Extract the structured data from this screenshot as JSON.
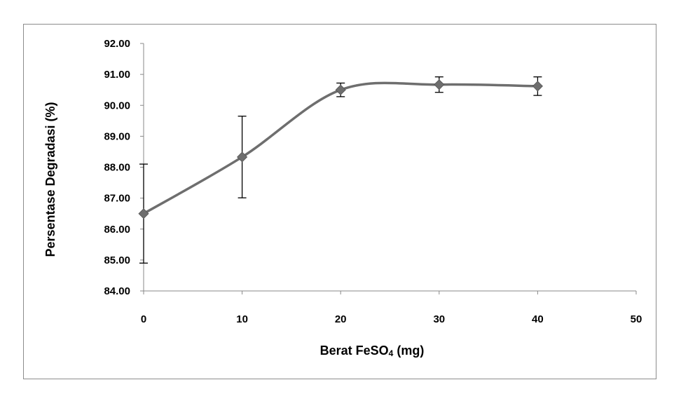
{
  "chart_data": {
    "type": "line",
    "title": "",
    "xlabel": "Berat FeSO",
    "xlabel_subscript": "4",
    "xlabel_suffix": " (mg)",
    "ylabel": "Persentase Degradasi (%)",
    "xlim": [
      0,
      50
    ],
    "ylim": [
      84,
      92
    ],
    "x_ticks": [
      "0",
      "10",
      "20",
      "30",
      "40",
      "50"
    ],
    "y_ticks": [
      "84.00",
      "85.00",
      "86.00",
      "87.00",
      "88.00",
      "89.00",
      "90.00",
      "91.00",
      "92.00"
    ],
    "grid": false,
    "legend": "none",
    "smooth": true,
    "series": [
      {
        "x": [
          0,
          10,
          20,
          30,
          40
        ],
        "y": [
          86.5,
          88.33,
          90.5,
          90.67,
          90.62
        ],
        "error": [
          1.6,
          1.32,
          0.22,
          0.25,
          0.3
        ],
        "color": "#6e6e6e",
        "marker": "diamond"
      }
    ]
  }
}
